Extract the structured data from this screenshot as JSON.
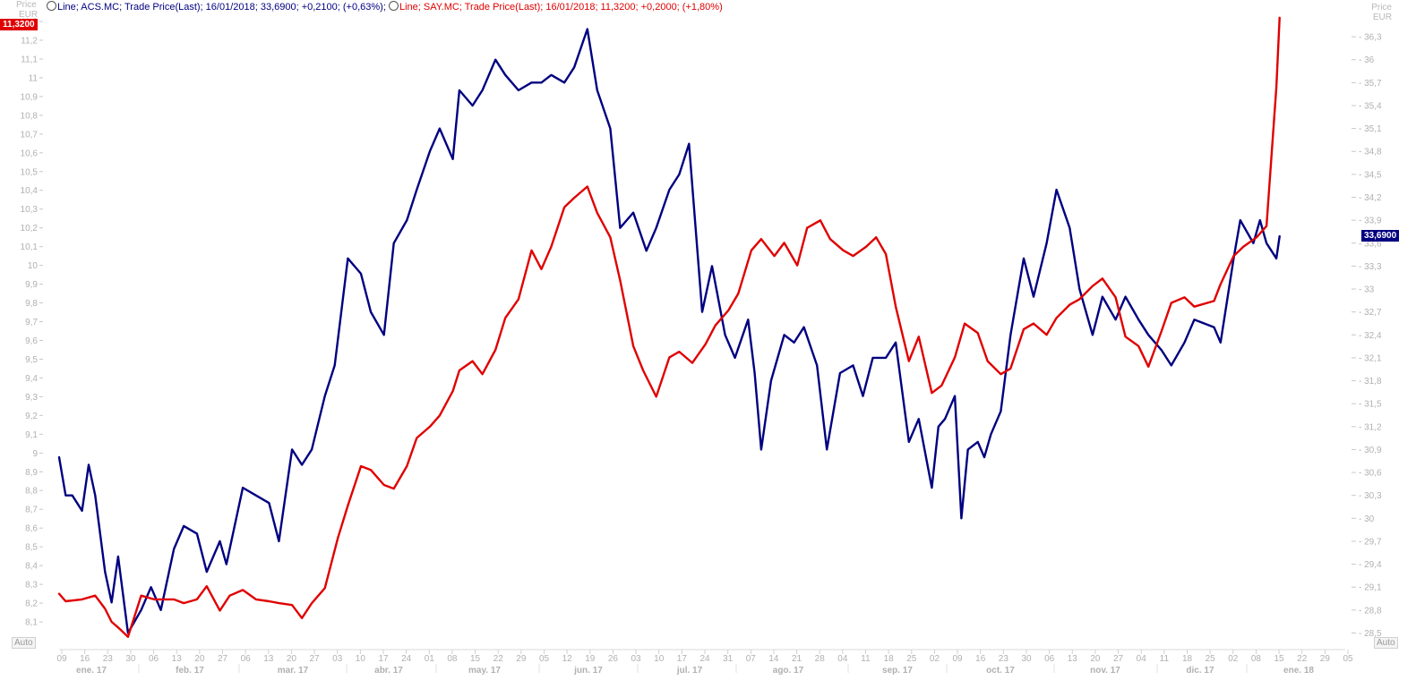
{
  "legend": {
    "series1": "Line; ACS.MC; Trade Price(Last);  16/01/2018; 33,6900; +0,2100; (+0,63%);",
    "series2": "Line; SAY.MC; Trade Price(Last);  16/01/2018; 11,3200; +0,2000; (+1,80%)"
  },
  "left_axis": {
    "title": "Price",
    "unit": "EUR",
    "auto": "Auto"
  },
  "right_axis": {
    "title": "Price",
    "unit": "EUR",
    "auto": "Auto"
  },
  "last_value_left": "11,3200",
  "last_value_right": "33,6900",
  "colors": {
    "acs": "#000080",
    "say": "#e00000",
    "axis_text": "#b0b0b0"
  },
  "chart_data": {
    "type": "line",
    "x_start": "2017-01-09",
    "x_end": "2018-02-05",
    "left_ylim": [
      8.0,
      11.3
    ],
    "right_ylim": [
      28.4,
      36.5
    ],
    "left_ticks": [
      "8,1",
      "8,2",
      "8,3",
      "8,4",
      "8,5",
      "8,6",
      "8,7",
      "8,8",
      "8,9",
      "9",
      "9,1",
      "9,2",
      "9,3",
      "9,4",
      "9,5",
      "9,6",
      "9,7",
      "9,8",
      "9,9",
      "10",
      "10,1",
      "10,2",
      "10,3",
      "10,4",
      "10,5",
      "10,6",
      "10,7",
      "10,8",
      "10,9",
      "11",
      "11,1",
      "11,2",
      "11,3"
    ],
    "right_ticks": [
      "28,5",
      "28,8",
      "29,1",
      "29,4",
      "29,7",
      "30",
      "30,3",
      "30,6",
      "30,9",
      "31,2",
      "31,5",
      "31,8",
      "32,1",
      "32,4",
      "32,7",
      "33",
      "33,3",
      "33,6",
      "33,9",
      "34,2",
      "34,5",
      "34,8",
      "35,1",
      "35,4",
      "35,7",
      "36",
      "36,3"
    ],
    "x_day_ticks": [
      "09",
      "16",
      "23",
      "30",
      "06",
      "13",
      "20",
      "27",
      "06",
      "13",
      "20",
      "27",
      "03",
      "10",
      "17",
      "24",
      "01",
      "08",
      "15",
      "22",
      "29",
      "05",
      "12",
      "19",
      "26",
      "03",
      "10",
      "17",
      "24",
      "31",
      "07",
      "14",
      "21",
      "28",
      "04",
      "11",
      "18",
      "25",
      "02",
      "09",
      "16",
      "23",
      "30",
      "06",
      "13",
      "20",
      "27",
      "04",
      "11",
      "18",
      "25",
      "02",
      "08",
      "15",
      "22",
      "29",
      "05"
    ],
    "x_month_labels": [
      "ene. 17",
      "feb. 17",
      "mar. 17",
      "abr. 17",
      "may. 17",
      "jun. 17",
      "jul. 17",
      "ago. 17",
      "sep. 17",
      "oct. 17",
      "nov. 17",
      "dic. 17",
      "ene. 18"
    ],
    "series": [
      {
        "name": "ACS.MC",
        "axis": "right",
        "color": "#000080",
        "points": [
          [
            "2017-01-09",
            30.8
          ],
          [
            "2017-01-11",
            30.3
          ],
          [
            "2017-01-13",
            30.3
          ],
          [
            "2017-01-16",
            30.1
          ],
          [
            "2017-01-18",
            30.7
          ],
          [
            "2017-01-20",
            30.3
          ],
          [
            "2017-01-23",
            29.3
          ],
          [
            "2017-01-25",
            28.9
          ],
          [
            "2017-01-27",
            29.5
          ],
          [
            "2017-01-30",
            28.5
          ],
          [
            "2017-02-03",
            28.8
          ],
          [
            "2017-02-06",
            29.1
          ],
          [
            "2017-02-09",
            28.8
          ],
          [
            "2017-02-13",
            29.6
          ],
          [
            "2017-02-16",
            29.9
          ],
          [
            "2017-02-20",
            29.8
          ],
          [
            "2017-02-23",
            29.3
          ],
          [
            "2017-02-27",
            29.7
          ],
          [
            "2017-03-01",
            29.4
          ],
          [
            "2017-03-06",
            30.4
          ],
          [
            "2017-03-10",
            30.3
          ],
          [
            "2017-03-14",
            30.2
          ],
          [
            "2017-03-17",
            29.7
          ],
          [
            "2017-03-21",
            30.9
          ],
          [
            "2017-03-24",
            30.7
          ],
          [
            "2017-03-27",
            30.9
          ],
          [
            "2017-03-31",
            31.6
          ],
          [
            "2017-04-03",
            32.0
          ],
          [
            "2017-04-07",
            33.4
          ],
          [
            "2017-04-11",
            33.2
          ],
          [
            "2017-04-14",
            32.7
          ],
          [
            "2017-04-18",
            32.4
          ],
          [
            "2017-04-21",
            33.6
          ],
          [
            "2017-04-25",
            33.9
          ],
          [
            "2017-04-28",
            34.3
          ],
          [
            "2017-05-02",
            34.8
          ],
          [
            "2017-05-05",
            35.1
          ],
          [
            "2017-05-09",
            34.7
          ],
          [
            "2017-05-11",
            35.6
          ],
          [
            "2017-05-15",
            35.4
          ],
          [
            "2017-05-18",
            35.6
          ],
          [
            "2017-05-22",
            36.0
          ],
          [
            "2017-05-25",
            35.8
          ],
          [
            "2017-05-29",
            35.6
          ],
          [
            "2017-06-02",
            35.7
          ],
          [
            "2017-06-05",
            35.7
          ],
          [
            "2017-06-08",
            35.8
          ],
          [
            "2017-06-12",
            35.7
          ],
          [
            "2017-06-15",
            35.9
          ],
          [
            "2017-06-19",
            36.4
          ],
          [
            "2017-06-22",
            35.6
          ],
          [
            "2017-06-26",
            35.1
          ],
          [
            "2017-06-29",
            33.8
          ],
          [
            "2017-07-03",
            34.0
          ],
          [
            "2017-07-07",
            33.5
          ],
          [
            "2017-07-10",
            33.8
          ],
          [
            "2017-07-14",
            34.3
          ],
          [
            "2017-07-17",
            34.5
          ],
          [
            "2017-07-20",
            34.9
          ],
          [
            "2017-07-24",
            32.7
          ],
          [
            "2017-07-27",
            33.3
          ],
          [
            "2017-07-31",
            32.4
          ],
          [
            "2017-08-03",
            32.1
          ],
          [
            "2017-08-07",
            32.6
          ],
          [
            "2017-08-09",
            31.9
          ],
          [
            "2017-08-11",
            30.9
          ],
          [
            "2017-08-14",
            31.8
          ],
          [
            "2017-08-18",
            32.4
          ],
          [
            "2017-08-21",
            32.3
          ],
          [
            "2017-08-24",
            32.5
          ],
          [
            "2017-08-28",
            32.0
          ],
          [
            "2017-08-31",
            30.9
          ],
          [
            "2017-09-04",
            31.9
          ],
          [
            "2017-09-08",
            32.0
          ],
          [
            "2017-09-11",
            31.6
          ],
          [
            "2017-09-14",
            32.1
          ],
          [
            "2017-09-18",
            32.1
          ],
          [
            "2017-09-21",
            32.3
          ],
          [
            "2017-09-25",
            31.0
          ],
          [
            "2017-09-28",
            31.3
          ],
          [
            "2017-10-02",
            30.4
          ],
          [
            "2017-10-04",
            31.2
          ],
          [
            "2017-10-06",
            31.3
          ],
          [
            "2017-10-09",
            31.6
          ],
          [
            "2017-10-11",
            30.0
          ],
          [
            "2017-10-13",
            30.9
          ],
          [
            "2017-10-16",
            31.0
          ],
          [
            "2017-10-18",
            30.8
          ],
          [
            "2017-10-20",
            31.1
          ],
          [
            "2017-10-23",
            31.4
          ],
          [
            "2017-10-26",
            32.4
          ],
          [
            "2017-10-30",
            33.4
          ],
          [
            "2017-11-02",
            32.9
          ],
          [
            "2017-11-06",
            33.6
          ],
          [
            "2017-11-09",
            34.3
          ],
          [
            "2017-11-13",
            33.8
          ],
          [
            "2017-11-16",
            33.0
          ],
          [
            "2017-11-20",
            32.4
          ],
          [
            "2017-11-23",
            32.9
          ],
          [
            "2017-11-27",
            32.6
          ],
          [
            "2017-11-30",
            32.9
          ],
          [
            "2017-12-04",
            32.6
          ],
          [
            "2017-12-07",
            32.4
          ],
          [
            "2017-12-11",
            32.2
          ],
          [
            "2017-12-14",
            32.0
          ],
          [
            "2017-12-18",
            32.3
          ],
          [
            "2017-12-21",
            32.6
          ],
          [
            "2017-12-27",
            32.5
          ],
          [
            "2017-12-29",
            32.3
          ],
          [
            "2018-01-02",
            33.4
          ],
          [
            "2018-01-04",
            33.9
          ],
          [
            "2018-01-08",
            33.6
          ],
          [
            "2018-01-10",
            33.9
          ],
          [
            "2018-01-12",
            33.6
          ],
          [
            "2018-01-15",
            33.4
          ],
          [
            "2018-01-16",
            33.69
          ]
        ]
      },
      {
        "name": "SAY.MC",
        "axis": "left",
        "color": "#e00000",
        "points": [
          [
            "2017-01-09",
            8.25
          ],
          [
            "2017-01-11",
            8.21
          ],
          [
            "2017-01-16",
            8.22
          ],
          [
            "2017-01-20",
            8.24
          ],
          [
            "2017-01-23",
            8.17
          ],
          [
            "2017-01-25",
            8.1
          ],
          [
            "2017-01-27",
            8.07
          ],
          [
            "2017-01-30",
            8.02
          ],
          [
            "2017-02-03",
            8.24
          ],
          [
            "2017-02-07",
            8.22
          ],
          [
            "2017-02-13",
            8.22
          ],
          [
            "2017-02-16",
            8.2
          ],
          [
            "2017-02-20",
            8.22
          ],
          [
            "2017-02-23",
            8.29
          ],
          [
            "2017-02-27",
            8.16
          ],
          [
            "2017-03-02",
            8.24
          ],
          [
            "2017-03-06",
            8.27
          ],
          [
            "2017-03-10",
            8.22
          ],
          [
            "2017-03-14",
            8.21
          ],
          [
            "2017-03-17",
            8.2
          ],
          [
            "2017-03-21",
            8.19
          ],
          [
            "2017-03-24",
            8.12
          ],
          [
            "2017-03-27",
            8.2
          ],
          [
            "2017-03-31",
            8.28
          ],
          [
            "2017-04-04",
            8.55
          ],
          [
            "2017-04-07",
            8.72
          ],
          [
            "2017-04-11",
            8.93
          ],
          [
            "2017-04-14",
            8.91
          ],
          [
            "2017-04-18",
            8.83
          ],
          [
            "2017-04-21",
            8.81
          ],
          [
            "2017-04-25",
            8.93
          ],
          [
            "2017-04-28",
            9.08
          ],
          [
            "2017-05-02",
            9.14
          ],
          [
            "2017-05-05",
            9.2
          ],
          [
            "2017-05-09",
            9.33
          ],
          [
            "2017-05-11",
            9.44
          ],
          [
            "2017-05-15",
            9.49
          ],
          [
            "2017-05-18",
            9.42
          ],
          [
            "2017-05-22",
            9.55
          ],
          [
            "2017-05-25",
            9.72
          ],
          [
            "2017-05-29",
            9.82
          ],
          [
            "2017-06-02",
            10.08
          ],
          [
            "2017-06-05",
            9.98
          ],
          [
            "2017-06-08",
            10.1
          ],
          [
            "2017-06-12",
            10.31
          ],
          [
            "2017-06-15",
            10.36
          ],
          [
            "2017-06-19",
            10.42
          ],
          [
            "2017-06-22",
            10.28
          ],
          [
            "2017-06-26",
            10.15
          ],
          [
            "2017-06-29",
            9.92
          ],
          [
            "2017-07-03",
            9.57
          ],
          [
            "2017-07-06",
            9.44
          ],
          [
            "2017-07-10",
            9.3
          ],
          [
            "2017-07-14",
            9.51
          ],
          [
            "2017-07-17",
            9.54
          ],
          [
            "2017-07-21",
            9.48
          ],
          [
            "2017-07-25",
            9.58
          ],
          [
            "2017-07-28",
            9.68
          ],
          [
            "2017-08-01",
            9.76
          ],
          [
            "2017-08-04",
            9.85
          ],
          [
            "2017-08-08",
            10.08
          ],
          [
            "2017-08-11",
            10.14
          ],
          [
            "2017-08-15",
            10.05
          ],
          [
            "2017-08-18",
            10.12
          ],
          [
            "2017-08-22",
            10.0
          ],
          [
            "2017-08-25",
            10.2
          ],
          [
            "2017-08-29",
            10.24
          ],
          [
            "2017-09-01",
            10.14
          ],
          [
            "2017-09-05",
            10.08
          ],
          [
            "2017-09-08",
            10.05
          ],
          [
            "2017-09-12",
            10.1
          ],
          [
            "2017-09-15",
            10.15
          ],
          [
            "2017-09-18",
            10.06
          ],
          [
            "2017-09-21",
            9.78
          ],
          [
            "2017-09-25",
            9.49
          ],
          [
            "2017-09-28",
            9.62
          ],
          [
            "2017-10-02",
            9.32
          ],
          [
            "2017-10-05",
            9.36
          ],
          [
            "2017-10-09",
            9.51
          ],
          [
            "2017-10-12",
            9.69
          ],
          [
            "2017-10-16",
            9.64
          ],
          [
            "2017-10-19",
            9.49
          ],
          [
            "2017-10-23",
            9.42
          ],
          [
            "2017-10-26",
            9.45
          ],
          [
            "2017-10-30",
            9.66
          ],
          [
            "2017-11-02",
            9.69
          ],
          [
            "2017-11-06",
            9.63
          ],
          [
            "2017-11-09",
            9.72
          ],
          [
            "2017-11-13",
            9.79
          ],
          [
            "2017-11-16",
            9.82
          ],
          [
            "2017-11-20",
            9.89
          ],
          [
            "2017-11-23",
            9.93
          ],
          [
            "2017-11-27",
            9.83
          ],
          [
            "2017-11-30",
            9.62
          ],
          [
            "2017-12-04",
            9.57
          ],
          [
            "2017-12-07",
            9.46
          ],
          [
            "2017-12-11",
            9.65
          ],
          [
            "2017-12-14",
            9.8
          ],
          [
            "2017-12-18",
            9.83
          ],
          [
            "2017-12-21",
            9.78
          ],
          [
            "2017-12-27",
            9.81
          ],
          [
            "2017-12-29",
            9.9
          ],
          [
            "2018-01-02",
            10.05
          ],
          [
            "2018-01-05",
            10.1
          ],
          [
            "2018-01-09",
            10.15
          ],
          [
            "2018-01-12",
            10.21
          ],
          [
            "2018-01-15",
            10.95
          ],
          [
            "2018-01-16",
            11.32
          ]
        ]
      }
    ]
  }
}
